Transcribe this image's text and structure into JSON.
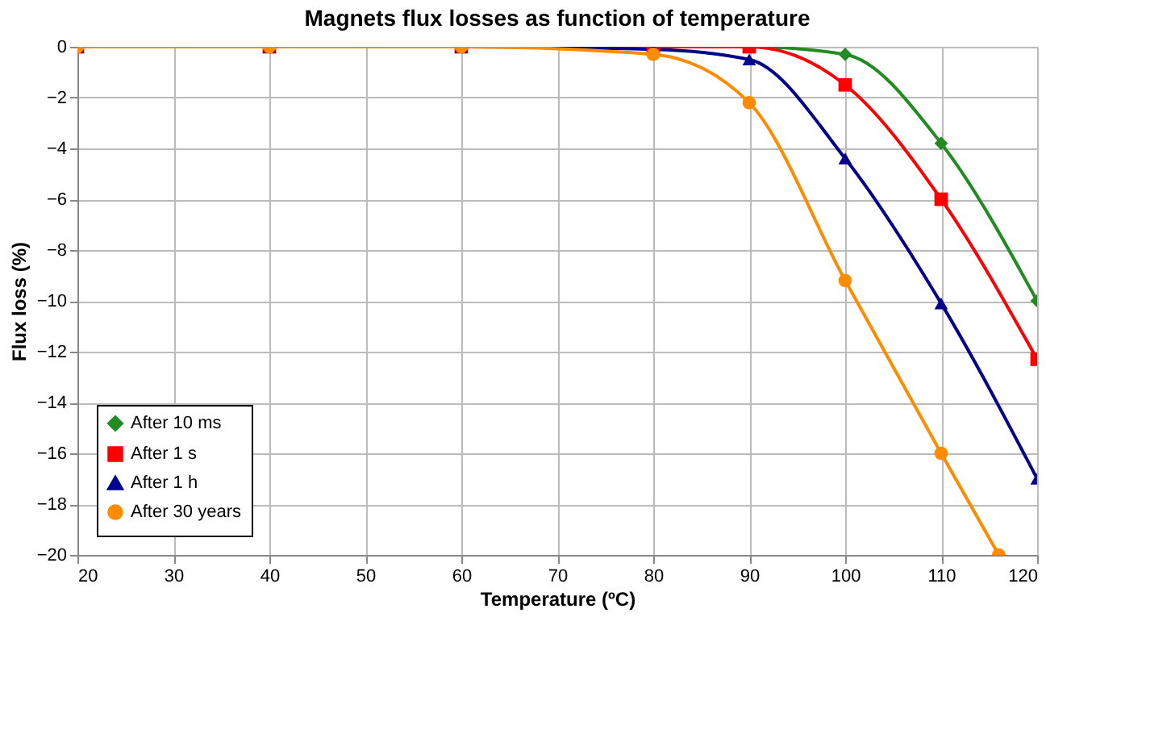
{
  "chart_data": {
    "type": "line",
    "title": "Magnets flux losses as function of temperature",
    "xlabel": "Temperature (ºC)",
    "ylabel": "Flux loss (%)",
    "x": [
      20,
      40,
      60,
      80,
      90,
      100,
      110,
      120
    ],
    "series": [
      {
        "name": "After 10 ms",
        "color": "#228b22",
        "marker": "diamond",
        "values": [
          null,
          null,
          null,
          0,
          0,
          -0.3,
          -3.8,
          -10
        ]
      },
      {
        "name": "After 1 s",
        "color": "#ff0000",
        "marker": "square",
        "values": [
          0,
          0,
          0,
          0,
          0,
          -1.5,
          -6,
          -12.3
        ]
      },
      {
        "name": "After 1 h",
        "color": "#00008b",
        "marker": "triangle",
        "values": [
          0,
          0,
          0,
          -0.1,
          -0.5,
          -4.4,
          -10.1,
          -17
        ]
      },
      {
        "name": "After 30 years",
        "color": "#ff8c00",
        "marker": "circle",
        "x": [
          20,
          40,
          60,
          80,
          90,
          100,
          110,
          116
        ],
        "values": [
          0,
          0,
          0,
          -0.3,
          -2.2,
          -9.2,
          -16,
          -20
        ]
      }
    ],
    "xlim": [
      20,
      120
    ],
    "xticks": [
      20,
      30,
      40,
      50,
      60,
      70,
      80,
      90,
      100,
      110,
      120
    ],
    "ylim": [
      -20,
      0
    ],
    "yticks": [
      -20,
      -18,
      -16,
      -14,
      -12,
      -10,
      -8,
      -6,
      -4,
      -2,
      0
    ],
    "grid": true,
    "legend": "bottom left",
    "line_style": "solid"
  }
}
